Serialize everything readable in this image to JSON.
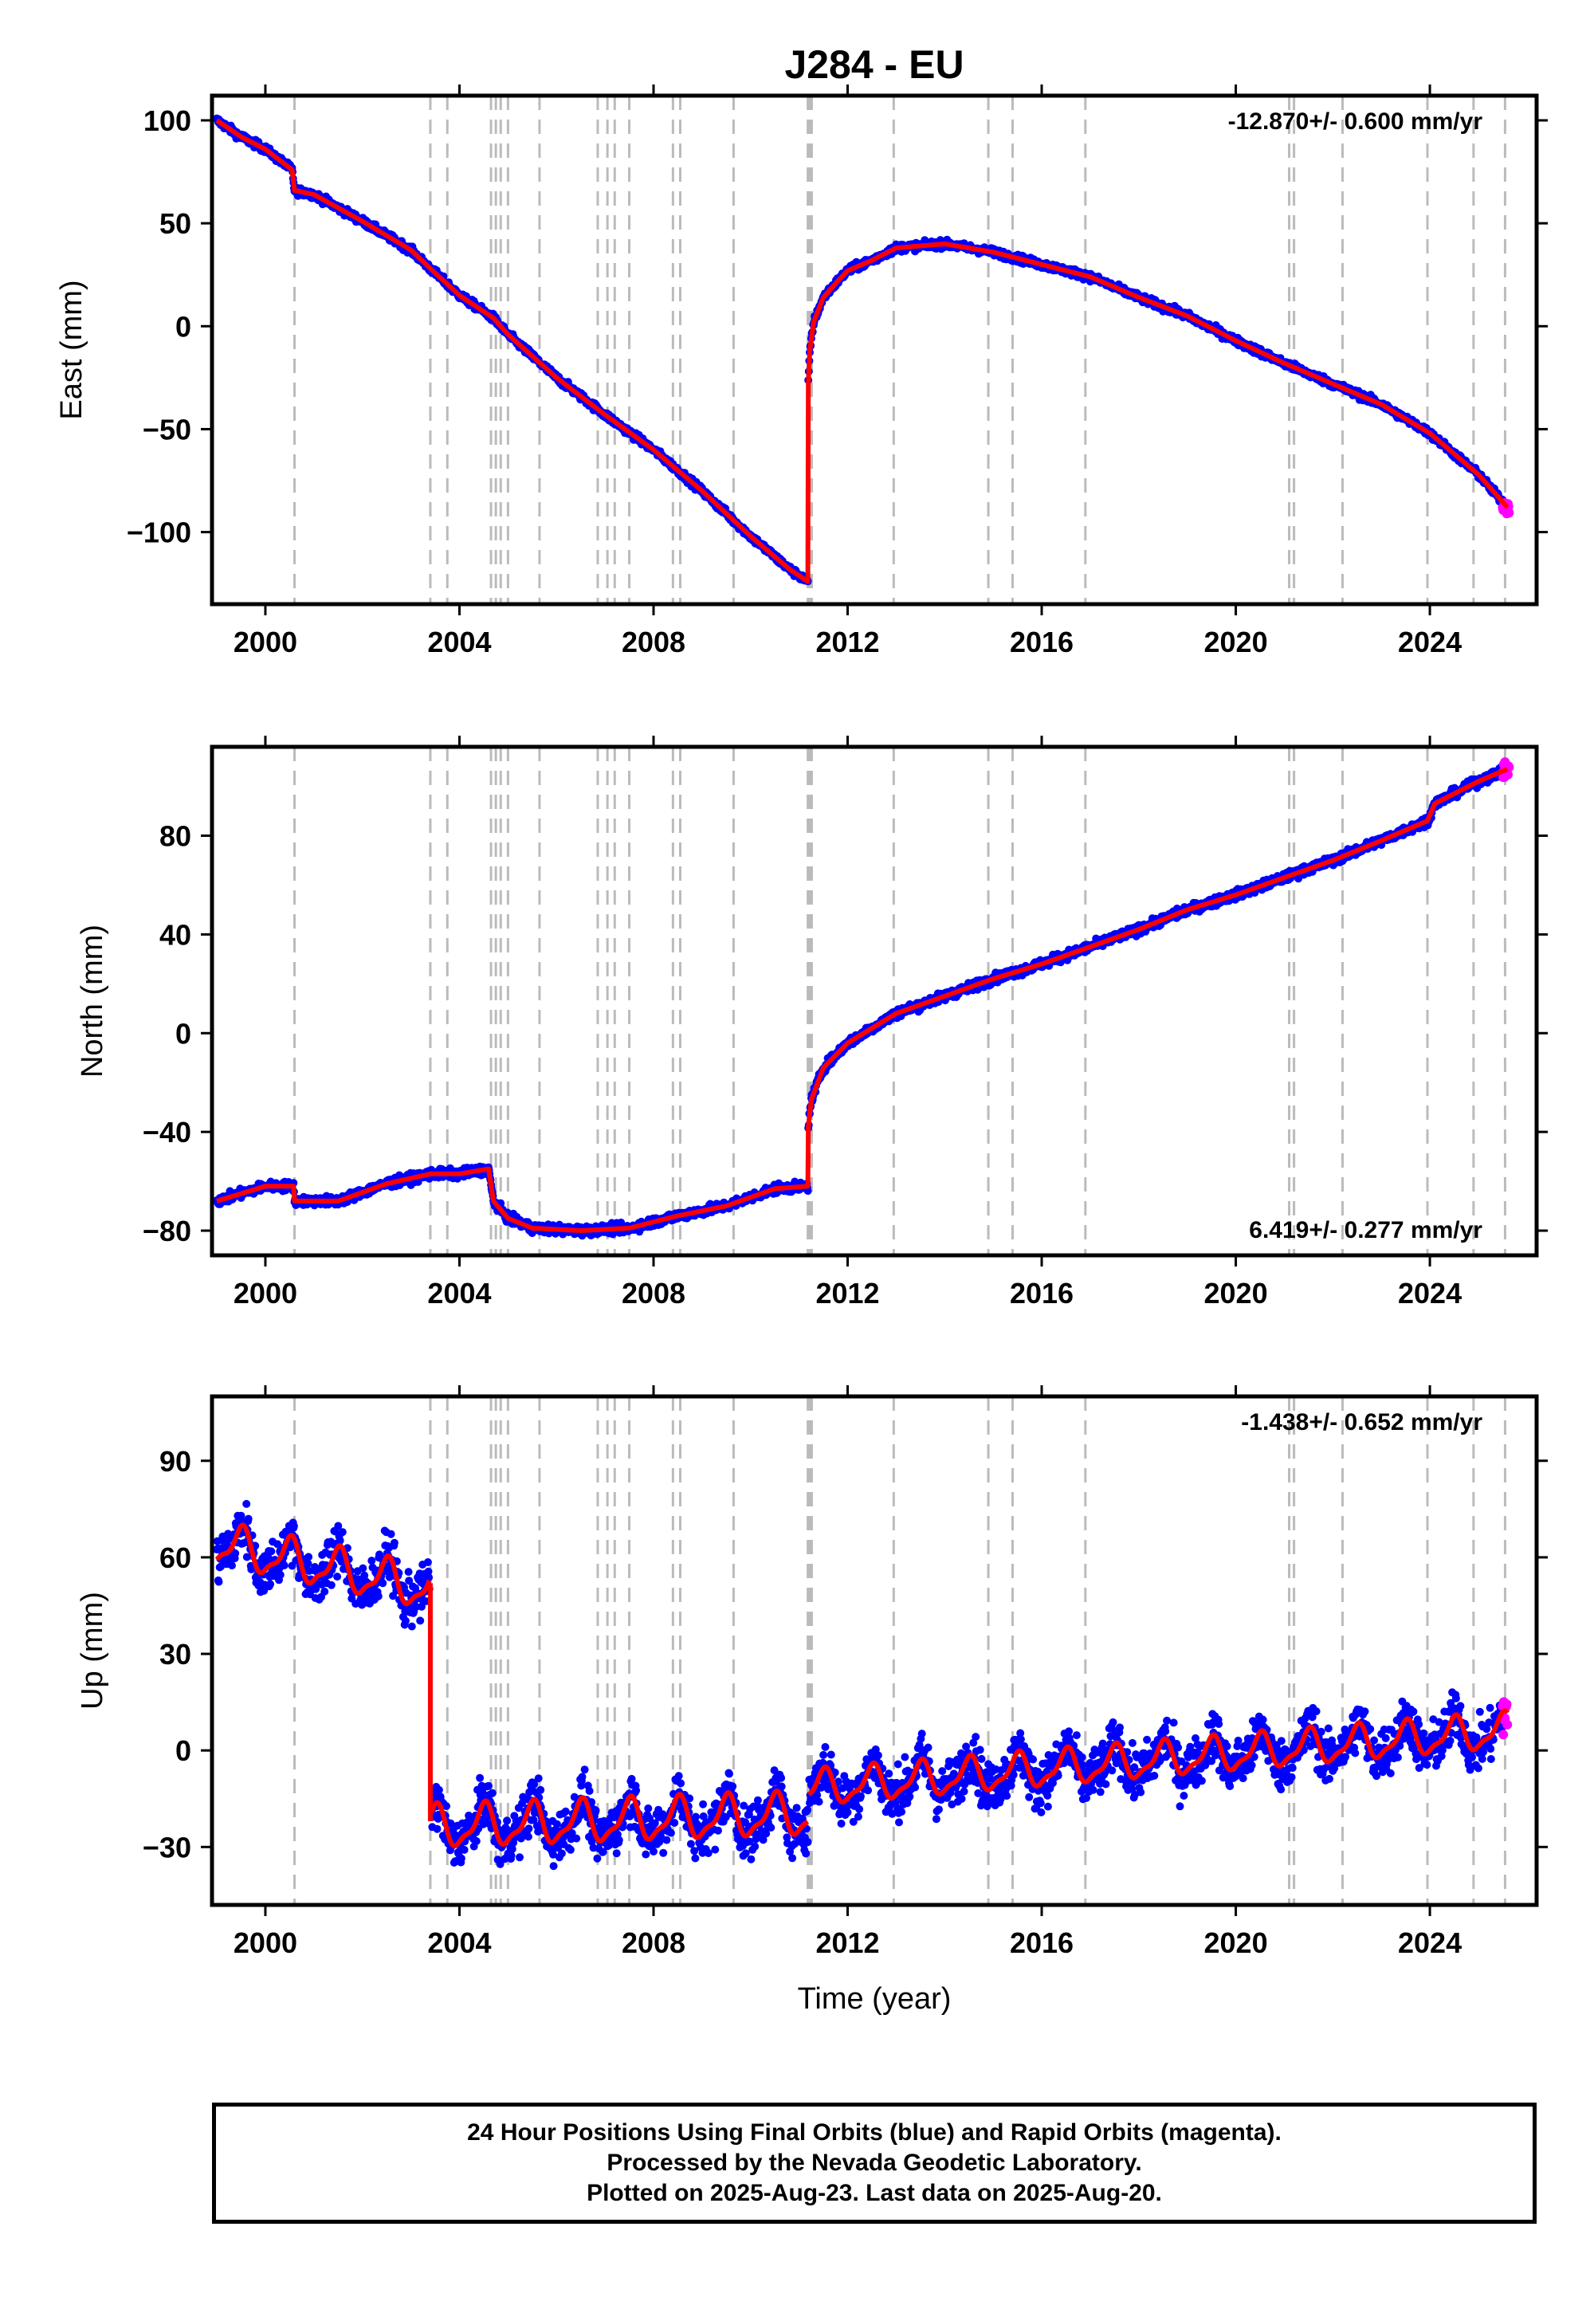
{
  "title": "J284 - EU",
  "footer": {
    "line1": "24 Hour Positions Using Final Orbits (blue) and Rapid Orbits (magenta).",
    "line2": "Processed by the Nevada Geodetic Laboratory.",
    "line3": "Plotted on 2025-Aug-23. Last data on 2025-Aug-20."
  },
  "colors": {
    "final_orbits": "#0000ff",
    "rapid_orbits": "#ff00ff",
    "model": "#ff0000",
    "event_lines": "#bbbbbb"
  },
  "chart_data": [
    {
      "type": "scatter",
      "component": "east",
      "ylabel": "East (mm)",
      "xlim": [
        1998.9,
        2026.2
      ],
      "ylim": [
        -135,
        112
      ],
      "x_ticks": [
        2000,
        2004,
        2008,
        2012,
        2016,
        2020,
        2024
      ],
      "y_ticks": [
        100,
        50,
        0,
        -50,
        -100
      ],
      "y_tick_labels": [
        "100",
        "50",
        "0",
        "−50",
        "−100"
      ],
      "rate_label": "-12.870+/- 0.600 mm/yr",
      "rate_position": "top-right",
      "grid": false,
      "event_lines": [
        2000.6,
        2003.4,
        2003.75,
        2004.65,
        2004.75,
        2004.85,
        2005.0,
        2005.65,
        2006.85,
        2007.05,
        2007.2,
        2007.5,
        2008.4,
        2008.55,
        2009.65,
        2011.18,
        2011.22,
        2011.26,
        2012.95,
        2014.9,
        2015.4,
        2016.9,
        2021.1,
        2021.2,
        2022.2,
        2023.95,
        2024.9,
        2025.55
      ],
      "model": [
        {
          "x": 1999.0,
          "y": 100
        },
        {
          "x": 1999.5,
          "y": 92
        },
        {
          "x": 2000.0,
          "y": 86
        },
        {
          "x": 2000.55,
          "y": 76
        },
        {
          "x": 2000.6,
          "y": 66
        },
        {
          "x": 2001.0,
          "y": 64
        },
        {
          "x": 2002.0,
          "y": 51
        },
        {
          "x": 2003.0,
          "y": 37
        },
        {
          "x": 2003.4,
          "y": 28
        },
        {
          "x": 2004.0,
          "y": 15
        },
        {
          "x": 2004.7,
          "y": 4
        },
        {
          "x": 2005.0,
          "y": -4
        },
        {
          "x": 2006.0,
          "y": -25
        },
        {
          "x": 2007.0,
          "y": -43
        },
        {
          "x": 2008.0,
          "y": -60
        },
        {
          "x": 2009.0,
          "y": -80
        },
        {
          "x": 2010.0,
          "y": -102
        },
        {
          "x": 2010.8,
          "y": -118
        },
        {
          "x": 2011.18,
          "y": -124
        },
        {
          "x": 2011.19,
          "y": -28
        },
        {
          "x": 2011.22,
          "y": -12
        },
        {
          "x": 2011.3,
          "y": 2
        },
        {
          "x": 2011.5,
          "y": 14
        },
        {
          "x": 2011.8,
          "y": 22
        },
        {
          "x": 2012.0,
          "y": 27
        },
        {
          "x": 2012.5,
          "y": 32
        },
        {
          "x": 2013.0,
          "y": 38
        },
        {
          "x": 2014.0,
          "y": 40
        },
        {
          "x": 2015.0,
          "y": 36
        },
        {
          "x": 2016.0,
          "y": 30
        },
        {
          "x": 2017.0,
          "y": 24
        },
        {
          "x": 2018.0,
          "y": 14
        },
        {
          "x": 2019.0,
          "y": 5
        },
        {
          "x": 2020.0,
          "y": -7
        },
        {
          "x": 2021.0,
          "y": -18
        },
        {
          "x": 2022.0,
          "y": -28
        },
        {
          "x": 2023.0,
          "y": -38
        },
        {
          "x": 2024.0,
          "y": -52
        },
        {
          "x": 2024.5,
          "y": -62
        },
        {
          "x": 2025.0,
          "y": -72
        },
        {
          "x": 2025.6,
          "y": -88
        }
      ],
      "series": [
        {
          "name": "final_orbits",
          "x_range": [
            1999.0,
            2025.5
          ]
        },
        {
          "name": "rapid_orbits",
          "x_range": [
            2025.5,
            2025.64
          ]
        }
      ]
    },
    {
      "type": "scatter",
      "component": "north",
      "ylabel": "North (mm)",
      "xlim": [
        1998.9,
        2026.2
      ],
      "ylim": [
        -90,
        116
      ],
      "x_ticks": [
        2000,
        2004,
        2008,
        2012,
        2016,
        2020,
        2024
      ],
      "y_ticks": [
        80,
        40,
        0,
        -40,
        -80
      ],
      "y_tick_labels": [
        "80",
        "40",
        "0",
        "−40",
        "−80"
      ],
      "rate_label": "6.419+/- 0.277 mm/yr",
      "rate_position": "bottom-right",
      "grid": false,
      "event_lines": [
        2000.6,
        2003.4,
        2003.75,
        2004.65,
        2004.75,
        2004.85,
        2005.0,
        2005.65,
        2006.85,
        2007.05,
        2007.2,
        2007.5,
        2008.4,
        2008.55,
        2009.65,
        2011.18,
        2011.22,
        2011.26,
        2012.95,
        2014.9,
        2015.4,
        2016.9,
        2021.1,
        2021.2,
        2022.2,
        2023.95,
        2024.9,
        2025.55
      ],
      "model": [
        {
          "x": 1999.0,
          "y": -68
        },
        {
          "x": 2000.0,
          "y": -62
        },
        {
          "x": 2000.58,
          "y": -62
        },
        {
          "x": 2000.6,
          "y": -68
        },
        {
          "x": 2001.5,
          "y": -68
        },
        {
          "x": 2002.5,
          "y": -61
        },
        {
          "x": 2003.4,
          "y": -57
        },
        {
          "x": 2004.0,
          "y": -57
        },
        {
          "x": 2004.6,
          "y": -55
        },
        {
          "x": 2004.7,
          "y": -68
        },
        {
          "x": 2005.0,
          "y": -75
        },
        {
          "x": 2005.5,
          "y": -79
        },
        {
          "x": 2006.5,
          "y": -80
        },
        {
          "x": 2007.5,
          "y": -79
        },
        {
          "x": 2008.5,
          "y": -74
        },
        {
          "x": 2009.5,
          "y": -70
        },
        {
          "x": 2010.5,
          "y": -63
        },
        {
          "x": 2011.18,
          "y": -62
        },
        {
          "x": 2011.19,
          "y": -38
        },
        {
          "x": 2011.25,
          "y": -27
        },
        {
          "x": 2011.5,
          "y": -14
        },
        {
          "x": 2012.0,
          "y": -4
        },
        {
          "x": 2012.5,
          "y": 2
        },
        {
          "x": 2013.0,
          "y": 8
        },
        {
          "x": 2014.0,
          "y": 15
        },
        {
          "x": 2015.0,
          "y": 22
        },
        {
          "x": 2016.0,
          "y": 28
        },
        {
          "x": 2017.0,
          "y": 35
        },
        {
          "x": 2018.0,
          "y": 42
        },
        {
          "x": 2019.0,
          "y": 50
        },
        {
          "x": 2020.0,
          "y": 56
        },
        {
          "x": 2021.0,
          "y": 63
        },
        {
          "x": 2022.0,
          "y": 70
        },
        {
          "x": 2023.0,
          "y": 78
        },
        {
          "x": 2023.95,
          "y": 86
        },
        {
          "x": 2024.1,
          "y": 93
        },
        {
          "x": 2024.5,
          "y": 97
        },
        {
          "x": 2025.0,
          "y": 102
        },
        {
          "x": 2025.6,
          "y": 107
        }
      ],
      "series": [
        {
          "name": "final_orbits",
          "x_range": [
            1999.0,
            2025.5
          ]
        },
        {
          "name": "rapid_orbits",
          "x_range": [
            2025.5,
            2025.64
          ]
        }
      ]
    },
    {
      "type": "scatter",
      "component": "up",
      "ylabel": "Up (mm)",
      "xlabel": "Time (year)",
      "xlim": [
        1998.9,
        2026.2
      ],
      "ylim": [
        -48,
        110
      ],
      "x_ticks": [
        2000,
        2004,
        2008,
        2012,
        2016,
        2020,
        2024
      ],
      "y_ticks": [
        90,
        60,
        30,
        0,
        -30
      ],
      "y_tick_labels": [
        "90",
        "60",
        "30",
        "0",
        "−30"
      ],
      "rate_label": "-1.438+/- 0.652 mm/yr",
      "rate_position": "top-right",
      "grid": false,
      "event_lines": [
        2000.6,
        2003.4,
        2003.75,
        2004.65,
        2004.75,
        2004.85,
        2005.0,
        2005.65,
        2006.85,
        2007.05,
        2007.2,
        2007.5,
        2008.4,
        2008.55,
        2009.65,
        2011.18,
        2011.22,
        2011.26,
        2012.95,
        2014.9,
        2015.4,
        2016.9,
        2021.1,
        2021.2,
        2022.2,
        2023.95,
        2024.9,
        2025.55
      ],
      "model_segments": [
        {
          "x_start": 1999.0,
          "x_end": 2003.38,
          "base_start": 64,
          "base_end": 50,
          "amplitude": 6
        },
        {
          "x_start": 2003.42,
          "x_end": 2011.18,
          "base_start": -24,
          "base_end": -20,
          "amplitude": 6
        },
        {
          "x_start": 2011.2,
          "x_end": 2025.6,
          "base_start": -12,
          "base_end": 6,
          "amplitude": 5
        }
      ],
      "step": {
        "x": 2003.4,
        "from": 52,
        "to": -22
      },
      "series": [
        {
          "name": "final_orbits",
          "x_range": [
            1999.0,
            2025.5
          ],
          "scatter_mm": 10
        },
        {
          "name": "rapid_orbits",
          "x_range": [
            2025.5,
            2025.64
          ]
        }
      ]
    }
  ]
}
